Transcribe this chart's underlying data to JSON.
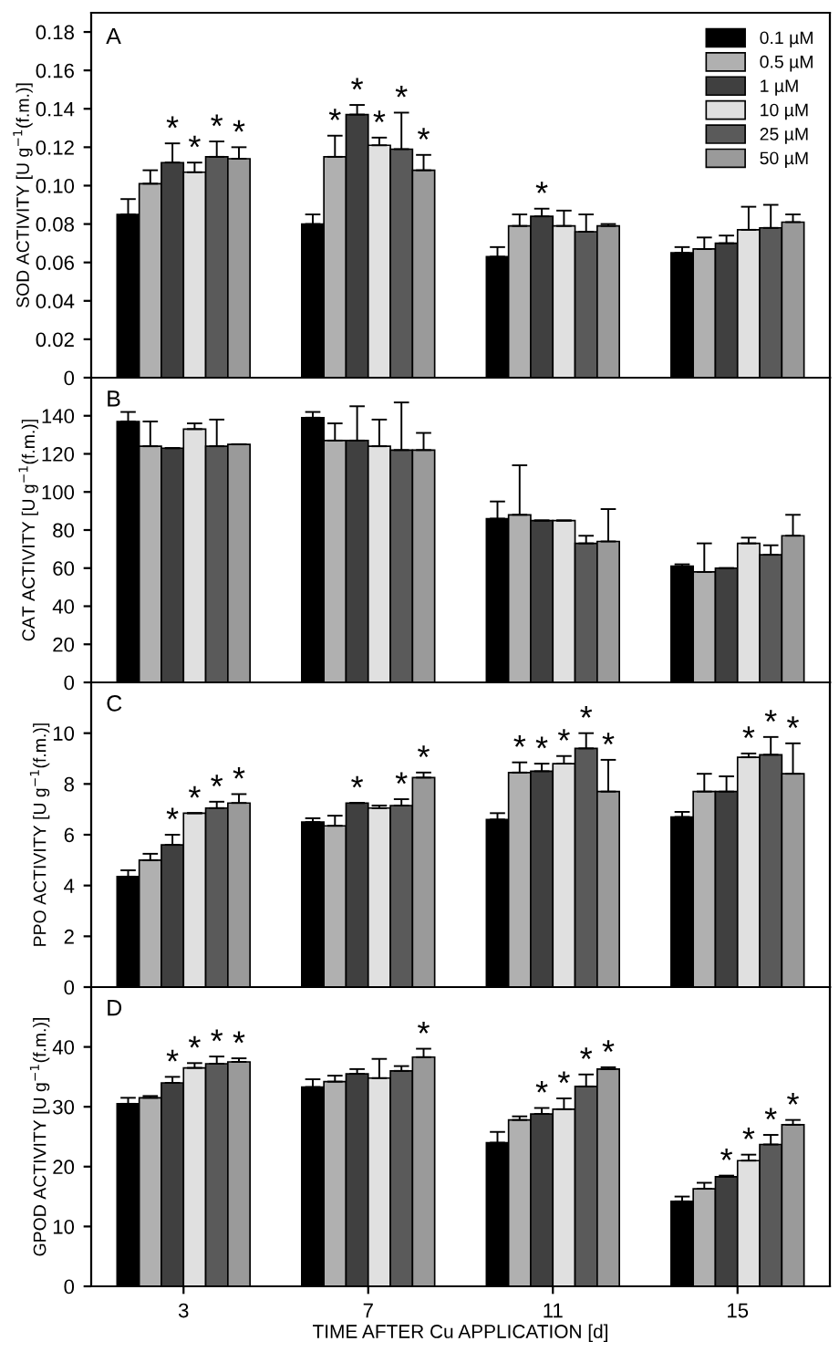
{
  "chart_data": [
    {
      "type": "bar",
      "title": "A",
      "ylabel": "SOD ACTIVITY [U g$^{−1}$(f.m.)]",
      "categories": [
        "3",
        "7",
        "11",
        "15"
      ],
      "ylim": [
        0,
        0.19
      ],
      "yticks": [
        0,
        0.02,
        0.04,
        0.06,
        0.08,
        {
          "value": 0.1,
          "label": "0.10"
        },
        0.12,
        0.14,
        0.16,
        0.18
      ],
      "tick_labels": "y",
      "legend": "top right",
      "grid": false,
      "series": [
        {
          "name": "0.1 µM",
          "color": "#000000",
          "values": [
            0.085,
            0.08,
            0.063,
            0.065
          ],
          "errors": [
            0.008,
            0.005,
            0.005,
            0.003
          ],
          "value_labels": [
            null,
            null,
            null,
            null
          ]
        },
        {
          "name": "0.5 µM",
          "color": "#b0b0b0",
          "values": [
            0.101,
            0.115,
            0.079,
            0.067
          ],
          "errors": [
            0.007,
            0.011,
            0.006,
            0.006
          ],
          "value_labels": [
            null,
            "*",
            null,
            null
          ]
        },
        {
          "name": "1 µM",
          "color": "#404040",
          "values": [
            0.112,
            0.137,
            0.084,
            0.07
          ],
          "errors": [
            0.01,
            0.005,
            0.004,
            0.004
          ],
          "value_labels": [
            "*",
            "*",
            "*",
            null
          ]
        },
        {
          "name": "10 µM",
          "color": "#e0e0e0",
          "values": [
            0.107,
            0.121,
            0.079,
            0.077
          ],
          "errors": [
            0.005,
            0.004,
            0.008,
            0.012
          ],
          "value_labels": [
            "*",
            "*",
            null,
            null
          ]
        },
        {
          "name": "25 µM",
          "color": "#5a5a5a",
          "values": [
            0.115,
            0.119,
            0.076,
            0.078
          ],
          "errors": [
            0.008,
            0.019,
            0.009,
            0.012
          ],
          "value_labels": [
            "*",
            "*",
            null,
            null
          ]
        },
        {
          "name": "50 µM",
          "color": "#9a9a9a",
          "values": [
            0.114,
            0.108,
            0.079,
            0.081
          ],
          "errors": [
            0.006,
            0.008,
            0.001,
            0.004
          ],
          "value_labels": [
            "*",
            "*",
            null,
            null
          ]
        }
      ]
    },
    {
      "type": "bar",
      "title": "B",
      "ylabel": "CAT ACTIVITY [U g$^{−1}$(f.m.)]",
      "categories": [
        "3",
        "7",
        "11",
        "15"
      ],
      "ylim": [
        0,
        160
      ],
      "yticks": [
        0,
        20,
        40,
        60,
        80,
        100,
        120,
        140
      ],
      "tick_labels": "y",
      "grid": false,
      "series": [
        {
          "color": "#000000",
          "values": [
            137,
            139,
            86,
            61
          ],
          "errors": [
            5,
            3,
            9,
            1
          ]
        },
        {
          "color": "#b0b0b0",
          "values": [
            124,
            127,
            88,
            58
          ],
          "errors": [
            13,
            9,
            26,
            15
          ]
        },
        {
          "color": "#404040",
          "values": [
            123,
            127,
            85,
            60
          ],
          "errors": [
            0,
            18,
            0,
            0
          ]
        },
        {
          "color": "#e0e0e0",
          "values": [
            133,
            124,
            85,
            73
          ],
          "errors": [
            3,
            14,
            0,
            3
          ]
        },
        {
          "color": "#5a5a5a",
          "values": [
            124,
            122,
            73,
            67
          ],
          "errors": [
            14,
            25,
            4,
            5
          ]
        },
        {
          "color": "#9a9a9a",
          "values": [
            125,
            122,
            74,
            77
          ],
          "errors": [
            0,
            9,
            17,
            11
          ]
        }
      ]
    },
    {
      "type": "bar",
      "title": "C",
      "ylabel": "PPO ACTIVITY [U g$^{−1}$(f.m.)]",
      "categories": [
        "3",
        "7",
        "11",
        "15"
      ],
      "ylim": [
        0,
        12
      ],
      "yticks": [
        0,
        2,
        4,
        6,
        8,
        10
      ],
      "tick_labels": "y",
      "grid": false,
      "series": [
        {
          "color": "#000000",
          "values": [
            4.35,
            6.5,
            6.6,
            6.7
          ],
          "errors": [
            0.25,
            0.15,
            0.25,
            0.2
          ],
          "value_labels": [
            null,
            null,
            null,
            null
          ]
        },
        {
          "color": "#b0b0b0",
          "values": [
            5.0,
            6.35,
            8.45,
            7.7
          ],
          "errors": [
            0.25,
            0.4,
            0.4,
            0.7
          ],
          "value_labels": [
            null,
            null,
            "*",
            null
          ]
        },
        {
          "color": "#404040",
          "values": [
            5.6,
            7.25,
            8.5,
            7.7
          ],
          "errors": [
            0.4,
            0,
            0.3,
            0.6
          ],
          "value_labels": [
            "*",
            "*",
            "*",
            null
          ]
        },
        {
          "color": "#e0e0e0",
          "values": [
            6.85,
            7.05,
            8.8,
            9.05
          ],
          "errors": [
            0,
            0.1,
            0.3,
            0.15
          ],
          "value_labels": [
            "*",
            null,
            "*",
            "*"
          ]
        },
        {
          "color": "#5a5a5a",
          "values": [
            7.05,
            7.15,
            9.4,
            9.15
          ],
          "errors": [
            0.25,
            0.25,
            0.6,
            0.7
          ],
          "value_labels": [
            "*",
            "*",
            "*",
            "*"
          ]
        },
        {
          "color": "#9a9a9a",
          "values": [
            7.25,
            8.25,
            7.7,
            8.4
          ],
          "errors": [
            0.35,
            0.2,
            1.25,
            1.2
          ],
          "value_labels": [
            "*",
            "*",
            "*",
            "*"
          ]
        }
      ]
    },
    {
      "type": "bar",
      "title": "D",
      "ylabel": "GPOD ACTIVITY [U g$^{−1}$(f.m.)]",
      "xlabel": "TIME AFTER Cu APPLICATION [d]",
      "categories": [
        "3",
        "7",
        "11",
        "15"
      ],
      "ylim": [
        0,
        50
      ],
      "yticks": [
        0,
        10,
        20,
        30,
        40
      ],
      "grid": false,
      "series": [
        {
          "color": "#000000",
          "values": [
            30.5,
            33.3,
            24,
            14.2
          ],
          "errors": [
            1,
            1.3,
            1.8,
            0.8
          ],
          "value_labels": [
            null,
            null,
            null,
            null
          ]
        },
        {
          "color": "#b0b0b0",
          "values": [
            31.5,
            34.2,
            27.8,
            16.3
          ],
          "errors": [
            0.3,
            1,
            0.6,
            1
          ],
          "value_labels": [
            null,
            null,
            null,
            null
          ]
        },
        {
          "color": "#404040",
          "values": [
            34,
            35.5,
            28.8,
            18.3
          ],
          "errors": [
            1,
            0.8,
            1,
            0.2
          ],
          "value_labels": [
            "*",
            null,
            "*",
            "*"
          ]
        },
        {
          "color": "#e0e0e0",
          "values": [
            36.5,
            34.8,
            29.6,
            21
          ],
          "errors": [
            0.8,
            3.2,
            1.8,
            1
          ],
          "value_labels": [
            "*",
            null,
            "*",
            "*"
          ]
        },
        {
          "color": "#5a5a5a",
          "values": [
            37.2,
            36,
            33.4,
            23.7
          ],
          "errors": [
            1.2,
            0.8,
            2,
            1.6
          ],
          "value_labels": [
            "*",
            null,
            "*",
            "*"
          ]
        },
        {
          "color": "#9a9a9a",
          "values": [
            37.5,
            38.3,
            36.3,
            27
          ],
          "errors": [
            0.6,
            1.4,
            0.3,
            0.8
          ],
          "value_labels": [
            "*",
            "*",
            "*",
            "*"
          ]
        }
      ]
    }
  ]
}
